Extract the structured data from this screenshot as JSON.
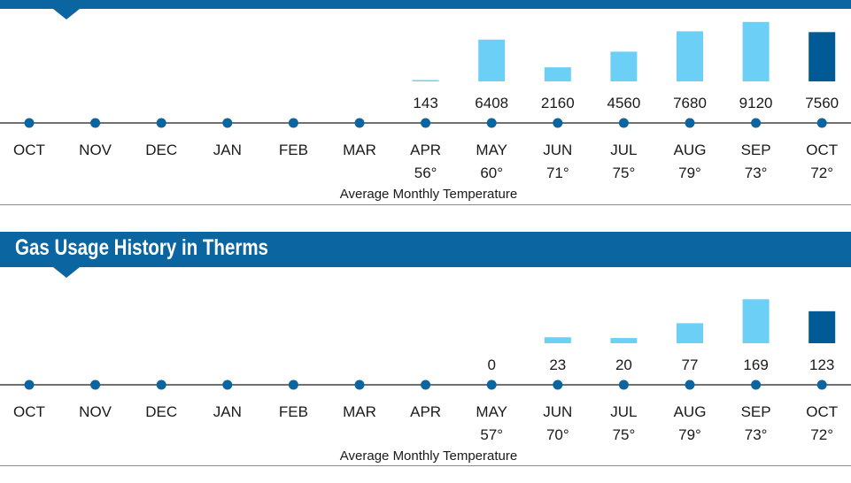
{
  "colors": {
    "header_bg": "#0a65a0",
    "bar_past": "#6ccff6",
    "bar_current": "#005a96",
    "axis_dot": "#0a65a0"
  },
  "chart_data": [
    {
      "type": "bar",
      "title": "",
      "categories": [
        "OCT",
        "NOV",
        "DEC",
        "JAN",
        "FEB",
        "MAR",
        "APR",
        "MAY",
        "JUN",
        "JUL",
        "AUG",
        "SEP",
        "OCT"
      ],
      "values": [
        null,
        null,
        null,
        null,
        null,
        null,
        143,
        6408,
        2160,
        4560,
        7680,
        9120,
        7560
      ],
      "value_labels": [
        "",
        "",
        "",
        "",
        "",
        "",
        "143",
        "6408",
        "2160",
        "4560",
        "7680",
        "9120",
        "7560"
      ],
      "temperatures": [
        "",
        "",
        "",
        "",
        "",
        "",
        "56°",
        "60°",
        "71°",
        "75°",
        "79°",
        "73°",
        "72°"
      ],
      "xlabel": "Average Monthly Temperature",
      "highlight_index": 12,
      "ylim": [
        0,
        9500
      ]
    },
    {
      "type": "bar",
      "title": "Gas Usage History in Therms",
      "categories": [
        "OCT",
        "NOV",
        "DEC",
        "JAN",
        "FEB",
        "MAR",
        "APR",
        "MAY",
        "JUN",
        "JUL",
        "AUG",
        "SEP",
        "OCT"
      ],
      "values": [
        null,
        null,
        null,
        null,
        null,
        null,
        null,
        0,
        23,
        20,
        77,
        169,
        123
      ],
      "value_labels": [
        "",
        "",
        "",
        "",
        "",
        "",
        "",
        "0",
        "23",
        "20",
        "77",
        "169",
        "123"
      ],
      "temperatures": [
        "",
        "",
        "",
        "",
        "",
        "",
        "",
        "57°",
        "70°",
        "75°",
        "79°",
        "73°",
        "72°"
      ],
      "xlabel": "Average Monthly Temperature",
      "highlight_index": 12,
      "ylim": [
        0,
        170
      ]
    }
  ]
}
